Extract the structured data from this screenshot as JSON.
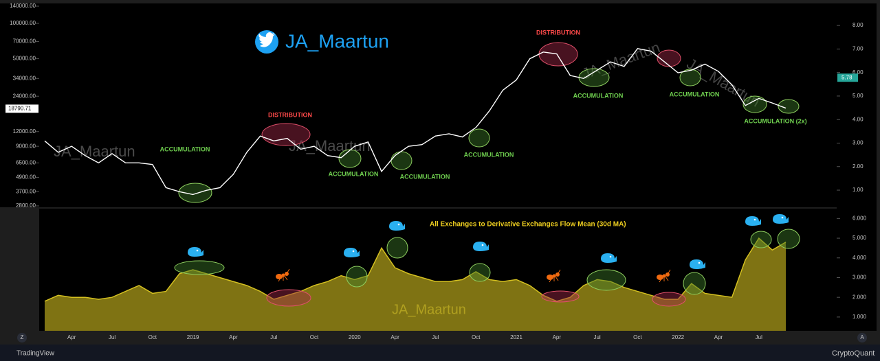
{
  "header": {
    "handle": "JA_Maartun",
    "watermark": "JA_Maartun"
  },
  "annotations": [
    "ACCUMULATION",
    "DISTRIBUTION",
    "ACCUMULATION",
    "ACCUMULATION",
    "ACCUMULATION",
    "DISTRIBUTION",
    "ACCUMULATION",
    "ACCUMULATION",
    "ACCUMULATION (2x)"
  ],
  "footer": {
    "left": "TradingView",
    "right": "CryptoQuant",
    "left_button": "Z",
    "right_button": "A"
  },
  "chart_data": [
    {
      "type": "line",
      "log_scale": true,
      "color": "#ffffff",
      "categories": [
        null,
        null,
        "Apr",
        null,
        null,
        "Jul",
        null,
        null,
        "Oct",
        null,
        null,
        "2019",
        null,
        null,
        "Apr",
        null,
        null,
        "Jul",
        null,
        null,
        "Oct",
        null,
        null,
        "2020",
        null,
        null,
        "Apr",
        null,
        null,
        "Jul",
        null,
        null,
        "Oct",
        null,
        null,
        "2021",
        null,
        null,
        "Apr",
        null,
        null,
        "Jul",
        null,
        null,
        "Oct",
        null,
        null,
        "2022",
        null,
        null,
        "Apr",
        null,
        null,
        "Jul",
        null,
        null
      ],
      "values": [
        10000,
        8000,
        9000,
        7500,
        6500,
        7800,
        6500,
        6500,
        6300,
        4000,
        3700,
        3500,
        3800,
        4000,
        5200,
        8000,
        11000,
        10000,
        10500,
        8500,
        9000,
        7500,
        7200,
        9000,
        9800,
        5500,
        7500,
        9000,
        9300,
        11000,
        11500,
        10800,
        13000,
        18000,
        27000,
        33000,
        50000,
        57000,
        55000,
        36000,
        34000,
        40000,
        47000,
        43000,
        61000,
        58000,
        47000,
        38000,
        40000,
        45000,
        39000,
        30000,
        20000,
        23000,
        21000,
        19000
      ],
      "ylim": [
        2800,
        140000
      ],
      "yticks": [
        {
          "value": 140000,
          "label": "140000.00"
        },
        {
          "value": 100000,
          "label": "100000.00"
        },
        {
          "value": 70000,
          "label": "70000.00"
        },
        {
          "value": 50000,
          "label": "50000.00"
        },
        {
          "value": 34000,
          "label": "34000.00"
        },
        {
          "value": 24000,
          "label": "24000.00"
        },
        {
          "value": 12000,
          "label": "12000.00"
        },
        {
          "value": 9000,
          "label": "9000.00"
        },
        {
          "value": 6500,
          "label": "6500.00"
        },
        {
          "value": 4900,
          "label": "4900.00"
        },
        {
          "value": 3700,
          "label": "3700.00"
        },
        {
          "value": 2800,
          "label": "2800.00"
        }
      ],
      "last_price": 18790.71,
      "y2lim": [
        0.33,
        8.82
      ],
      "y2ticks": [
        {
          "value": 1,
          "label": "1.00"
        },
        {
          "value": 2,
          "label": "2.00"
        },
        {
          "value": 3,
          "label": "3.00"
        },
        {
          "value": 4,
          "label": "4.00"
        },
        {
          "value": 5,
          "label": "5.00"
        },
        {
          "value": 6,
          "label": "6.00"
        },
        {
          "value": 7,
          "label": "7.00"
        },
        {
          "value": 8,
          "label": "8.00"
        }
      ],
      "last_y2_value": 5.78
    },
    {
      "type": "area",
      "title": "All Exchanges to Derivative Exchanges Flow Mean (30d MA)",
      "color": "#d4c020",
      "values": [
        1.8,
        2.1,
        2.0,
        2.0,
        1.9,
        2.0,
        2.3,
        2.6,
        2.2,
        2.3,
        3.2,
        3.4,
        3.2,
        3.0,
        2.8,
        2.6,
        2.3,
        1.9,
        2.1,
        2.3,
        2.6,
        2.8,
        3.1,
        2.9,
        3.1,
        4.5,
        3.5,
        3.2,
        3.0,
        2.8,
        2.8,
        2.9,
        3.3,
        2.9,
        2.8,
        2.9,
        2.6,
        2.1,
        1.8,
        2.0,
        2.6,
        2.9,
        2.8,
        2.5,
        2.3,
        2.1,
        1.9,
        1.9,
        2.7,
        2.2,
        2.1,
        2.0,
        3.9,
        5.0,
        4.4,
        4.8
      ],
      "ylim": [
        0.3,
        6.5
      ],
      "yticks": [
        {
          "value": 1,
          "label": "1.000"
        },
        {
          "value": 2,
          "label": "2.000"
        },
        {
          "value": 3,
          "label": "3.000"
        },
        {
          "value": 4,
          "label": "4.000"
        },
        {
          "value": 5,
          "label": "5.000"
        },
        {
          "value": 6,
          "label": "6.000"
        }
      ]
    }
  ]
}
